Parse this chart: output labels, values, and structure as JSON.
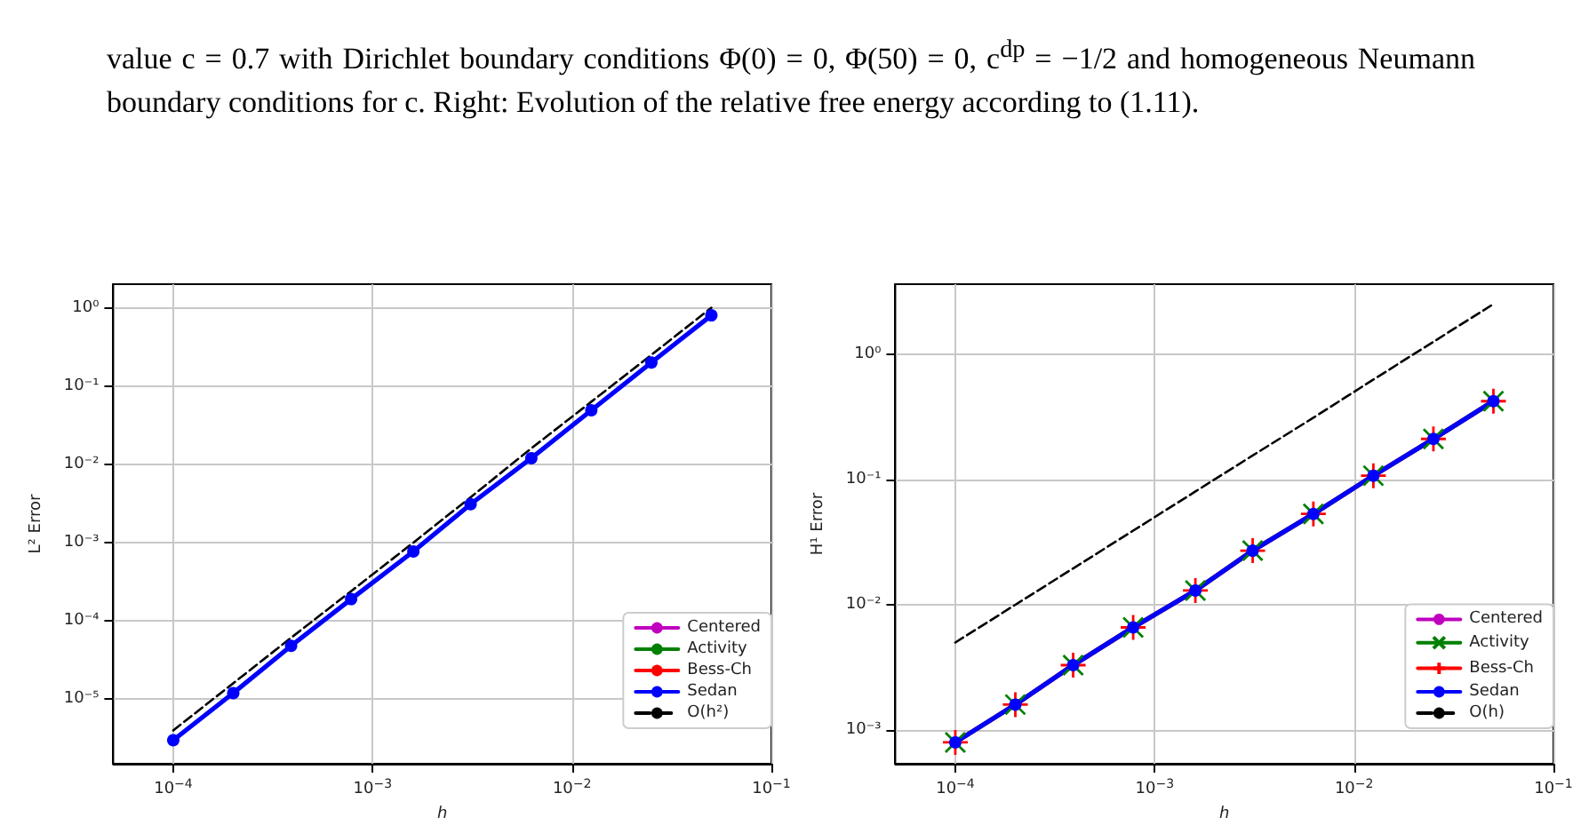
{
  "chart_data": [
    {
      "type": "line",
      "annotations": [
        "value c = 0.7 with Dirichlet boundary conditions Φ(0) = 0, Φ(50) = 0, c$^{dp}$ = −1/2 and homogeneous Neumann boundary conditions for c. Right: Evolution of the relative free energy according to (1.11)."
      ],
      "xlabel": "h",
      "ylabel": "L² Error",
      "log": "xy",
      "grid": true,
      "legend": "bottom right",
      "x": [
        0.0001,
        0.0002,
        0.00039,
        0.00078,
        0.0016,
        0.0031,
        0.00625,
        0.0125,
        0.025,
        0.05
      ],
      "xlim": [
        5e-05,
        0.1
      ],
      "ylim": [
        1.5e-06,
        2
      ],
      "xticks": [
        {
          "value": 0.0001,
          "label": "10$^{−4}$"
        },
        {
          "value": 0.001,
          "label": "10$^{−3}$"
        },
        {
          "value": 0.01,
          "label": "10$^{−2}$"
        },
        {
          "value": 0.1,
          "label": "10$^{−1}$"
        }
      ],
      "yticks": [
        {
          "value": 1e-05,
          "label": "10⁻⁵"
        },
        {
          "value": 0.0001,
          "label": "10⁻⁴"
        },
        {
          "value": 0.001,
          "label": "10⁻³"
        },
        {
          "value": 0.01,
          "label": "10⁻²"
        },
        {
          "value": 0.1,
          "label": "10⁻¹"
        },
        {
          "value": 1,
          "label": "10⁰"
        }
      ],
      "series": [
        {
          "name": "Centered",
          "color": "#bf00bf",
          "marker": "circle",
          "line_style": "solid",
          "values": [
            null,
            null,
            null,
            null,
            null,
            null,
            null,
            null,
            null,
            null
          ]
        },
        {
          "name": "Activity",
          "color": "#008000",
          "marker": "circle",
          "line_style": "solid",
          "values": [
            null,
            null,
            null,
            null,
            null,
            null,
            null,
            null,
            null,
            null
          ]
        },
        {
          "name": "Bess-Ch",
          "color": "#ff0000",
          "marker": "circle",
          "line_style": "solid",
          "values": [
            null,
            null,
            null,
            null,
            null,
            null,
            null,
            null,
            null,
            null
          ]
        },
        {
          "name": "Sedan",
          "color": "#0000ff",
          "marker": "circle",
          "line_style": "solid",
          "values": [
            3e-06,
            1.2e-05,
            4.8e-05,
            0.00019,
            0.00077,
            0.0031,
            0.012,
            0.049,
            0.2,
            0.8
          ]
        },
        {
          "name": "O(h²)",
          "color": "#000000",
          "marker": "none",
          "line_style": "dashed",
          "values": [
            4e-06,
            1.6e-05,
            6.1e-05,
            0.00024,
            0.001,
            0.0038,
            0.016,
            0.063,
            0.25,
            1.0
          ]
        }
      ]
    },
    {
      "type": "line",
      "xlabel": "h",
      "ylabel": "H¹ Error",
      "log": "xy",
      "grid": true,
      "legend": "bottom right",
      "x": [
        0.0001,
        0.0002,
        0.00039,
        0.00078,
        0.0016,
        0.0031,
        0.00625,
        0.0125,
        0.025,
        0.05
      ],
      "xlim": [
        5e-05,
        0.1
      ],
      "ylim": [
        0.00054,
        3.6
      ],
      "xticks": [
        {
          "value": 0.0001,
          "label": "10$^{−4}$"
        },
        {
          "value": 0.001,
          "label": "10$^{−3}$"
        },
        {
          "value": 0.01,
          "label": "10$^{−2}$"
        },
        {
          "value": 0.1,
          "label": "10$^{−1}$"
        }
      ],
      "yticks": [
        {
          "value": 0.001,
          "label": "10⁻³"
        },
        {
          "value": 0.01,
          "label": "10⁻²"
        },
        {
          "value": 0.1,
          "label": "10⁻¹"
        },
        {
          "value": 1,
          "label": "10⁰"
        }
      ],
      "series": [
        {
          "name": "Centered",
          "color": "#bf00bf",
          "marker": "circle",
          "line_style": "solid",
          "values": [
            null,
            null,
            null,
            null,
            null,
            null,
            null,
            null,
            null,
            null
          ]
        },
        {
          "name": "Activity",
          "color": "#008000",
          "marker": "cross",
          "line_style": "solid",
          "values": [
            0.0008,
            0.0016,
            0.0033,
            0.0066,
            0.013,
            0.027,
            0.053,
            0.107,
            0.21,
            0.42
          ]
        },
        {
          "name": "Bess-Ch",
          "color": "#ff0000",
          "marker": "plus",
          "line_style": "solid",
          "values": [
            0.0008,
            0.0016,
            0.0033,
            0.0066,
            0.013,
            0.027,
            0.053,
            0.107,
            0.21,
            0.42
          ]
        },
        {
          "name": "Sedan",
          "color": "#0000ff",
          "marker": "circle",
          "line_style": "solid",
          "values": [
            0.0008,
            0.0016,
            0.0033,
            0.0066,
            0.013,
            0.027,
            0.053,
            0.107,
            0.21,
            0.42
          ]
        },
        {
          "name": "O(h)",
          "color": "#000000",
          "marker": "none",
          "line_style": "dashed",
          "values": [
            0.005,
            0.01,
            0.0195,
            0.039,
            0.08,
            0.155,
            0.31,
            0.625,
            1.25,
            2.5
          ]
        }
      ]
    }
  ]
}
